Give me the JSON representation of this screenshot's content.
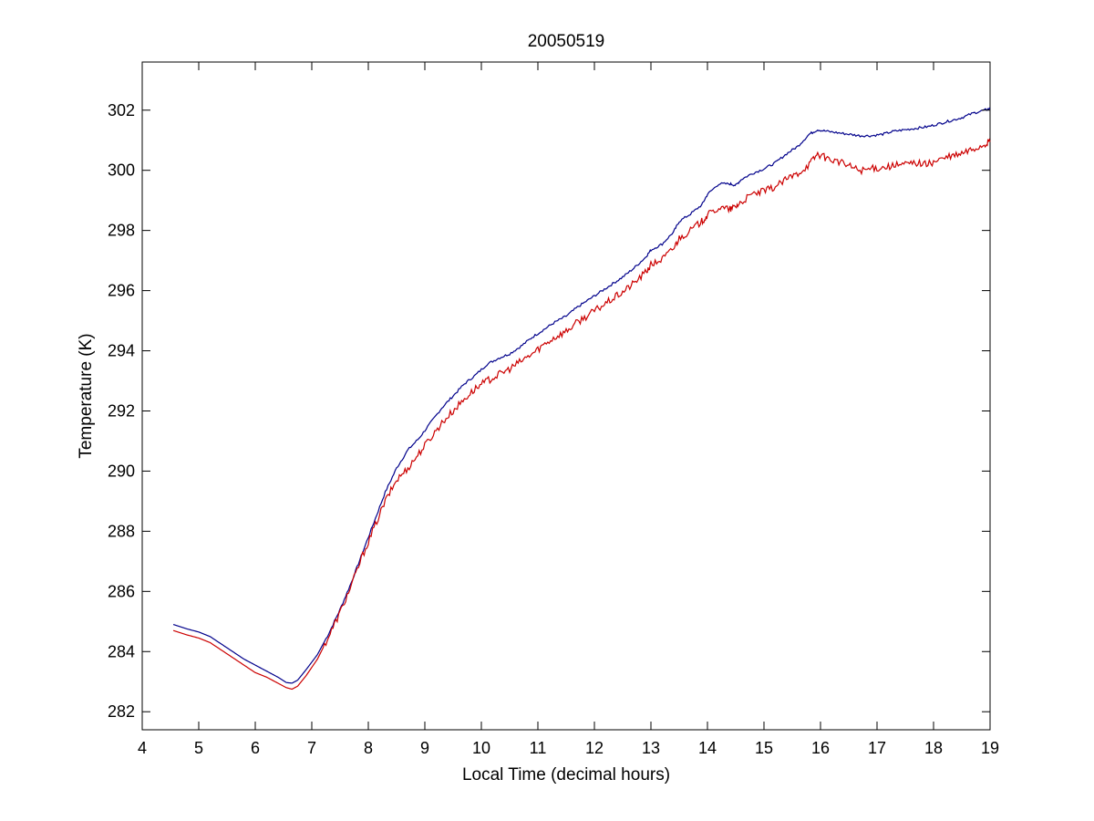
{
  "chart_data": {
    "type": "line",
    "title": "20050519",
    "xlabel": "Local Time (decimal hours)",
    "ylabel": "Temperature (K)",
    "xlim": [
      4,
      19
    ],
    "ylim": [
      281.4,
      303.6
    ],
    "xticks": [
      4,
      5,
      6,
      7,
      8,
      9,
      10,
      11,
      12,
      13,
      14,
      15,
      16,
      17,
      18,
      19
    ],
    "yticks": [
      282,
      284,
      286,
      288,
      290,
      292,
      294,
      296,
      298,
      300,
      302
    ],
    "grid": false,
    "legend": "none",
    "series": [
      {
        "color": "#00008b",
        "x": [
          4.55,
          4.8,
          5.0,
          5.2,
          5.4,
          5.6,
          5.8,
          6.0,
          6.2,
          6.4,
          6.55,
          6.65,
          6.75,
          6.9,
          7.1,
          7.3,
          7.5,
          7.7,
          7.9,
          8.1,
          8.3,
          8.5,
          8.7,
          8.9,
          9.1,
          9.3,
          9.5,
          9.7,
          9.9,
          10.1,
          10.3,
          10.5,
          10.7,
          10.9,
          11.1,
          11.3,
          11.5,
          11.7,
          11.9,
          12.1,
          12.3,
          12.5,
          12.7,
          12.9,
          13.0,
          13.2,
          13.4,
          13.5,
          13.7,
          13.9,
          14.0,
          14.2,
          14.4,
          14.5,
          14.6,
          14.8,
          15.0,
          15.2,
          15.4,
          15.6,
          15.8,
          15.95,
          16.1,
          16.3,
          16.5,
          16.7,
          16.9,
          17.1,
          17.3,
          17.5,
          17.7,
          17.9,
          18.1,
          18.3,
          18.5,
          18.7,
          18.9,
          19.0
        ],
        "y": [
          284.9,
          284.75,
          284.65,
          284.5,
          284.25,
          284.0,
          283.75,
          283.55,
          283.35,
          283.15,
          282.97,
          282.95,
          283.05,
          283.4,
          283.9,
          284.6,
          285.4,
          286.3,
          287.3,
          288.3,
          289.3,
          290.1,
          290.7,
          291.1,
          291.6,
          292.1,
          292.5,
          292.9,
          293.2,
          293.55,
          293.75,
          293.9,
          294.15,
          294.45,
          294.7,
          294.95,
          295.15,
          295.45,
          295.7,
          295.95,
          296.2,
          296.45,
          296.75,
          297.1,
          297.35,
          297.55,
          297.95,
          298.3,
          298.55,
          298.85,
          299.2,
          299.55,
          299.55,
          299.5,
          299.7,
          299.9,
          300.05,
          300.25,
          300.55,
          300.8,
          301.2,
          301.35,
          301.3,
          301.25,
          301.2,
          301.15,
          301.15,
          301.2,
          301.3,
          301.35,
          301.4,
          301.45,
          301.55,
          301.65,
          301.75,
          301.9,
          302.0,
          302.05
        ]
      },
      {
        "color": "#cc0000",
        "x": [
          4.55,
          4.8,
          5.0,
          5.2,
          5.4,
          5.6,
          5.8,
          6.0,
          6.2,
          6.4,
          6.55,
          6.65,
          6.75,
          6.9,
          7.1,
          7.3,
          7.5,
          7.7,
          7.9,
          8.1,
          8.3,
          8.5,
          8.7,
          8.9,
          9.1,
          9.3,
          9.5,
          9.7,
          9.9,
          10.1,
          10.3,
          10.5,
          10.7,
          10.9,
          11.1,
          11.3,
          11.5,
          11.7,
          11.9,
          12.1,
          12.3,
          12.5,
          12.7,
          12.9,
          13.0,
          13.2,
          13.4,
          13.5,
          13.7,
          13.9,
          14.0,
          14.2,
          14.4,
          14.5,
          14.6,
          14.8,
          15.0,
          15.2,
          15.4,
          15.6,
          15.8,
          15.95,
          16.1,
          16.3,
          16.5,
          16.7,
          16.9,
          17.1,
          17.3,
          17.5,
          17.7,
          17.9,
          18.1,
          18.3,
          18.5,
          18.7,
          18.9,
          19.0
        ],
        "y": [
          284.7,
          284.55,
          284.45,
          284.3,
          284.05,
          283.8,
          283.55,
          283.3,
          283.15,
          282.95,
          282.8,
          282.75,
          282.85,
          283.2,
          283.75,
          284.5,
          285.3,
          286.2,
          287.2,
          288.1,
          289.0,
          289.7,
          290.1,
          290.6,
          291.1,
          291.6,
          292.0,
          292.4,
          292.75,
          293.0,
          293.2,
          293.4,
          293.65,
          293.9,
          294.2,
          294.45,
          294.65,
          294.95,
          295.2,
          295.45,
          295.7,
          295.95,
          296.25,
          296.6,
          296.85,
          297.05,
          297.4,
          297.75,
          298.0,
          298.3,
          298.5,
          298.75,
          298.7,
          298.8,
          298.95,
          299.2,
          299.3,
          299.45,
          299.7,
          299.9,
          300.2,
          300.55,
          300.4,
          300.3,
          300.15,
          300.0,
          300.05,
          300.1,
          300.15,
          300.2,
          300.25,
          300.2,
          300.35,
          300.45,
          300.55,
          300.7,
          300.85,
          300.95
        ]
      }
    ]
  }
}
